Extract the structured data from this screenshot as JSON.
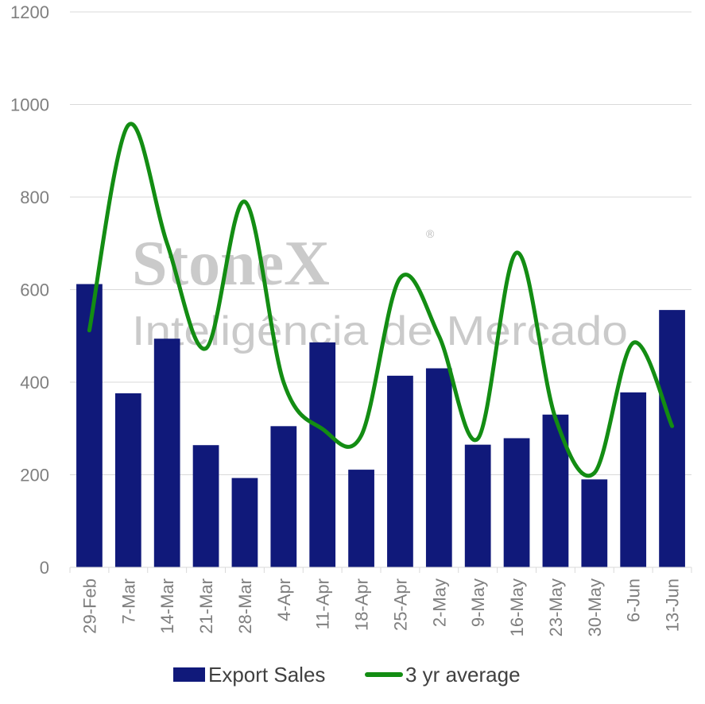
{
  "chart_data": {
    "type": "bar",
    "categories": [
      "29-Feb",
      "7-Mar",
      "14-Mar",
      "21-Mar",
      "28-Mar",
      "4-Apr",
      "11-Apr",
      "18-Apr",
      "25-Apr",
      "2-May",
      "9-May",
      "16-May",
      "23-May",
      "30-May",
      "6-Jun",
      "13-Jun"
    ],
    "series": [
      {
        "name": "Export Sales",
        "type": "bar",
        "color": "#10197a",
        "values": [
          612,
          376,
          494,
          264,
          193,
          305,
          486,
          211,
          414,
          430,
          265,
          279,
          330,
          190,
          378,
          556
        ]
      },
      {
        "name": "3 yr average",
        "type": "line",
        "smooth": true,
        "color": "#138d13",
        "values": [
          512,
          955,
          700,
          473,
          790,
          400,
          299,
          285,
          625,
          500,
          278,
          680,
          322,
          204,
          485,
          305
        ]
      }
    ],
    "ylim": [
      0,
      1200
    ],
    "yticks": [
      0,
      200,
      400,
      600,
      800,
      1000,
      1200
    ],
    "grid": true,
    "legend_position": "bottom",
    "title": "",
    "xlabel": "",
    "ylabel": ""
  },
  "watermark": {
    "brand": "StoneX",
    "registered": "®",
    "tagline": "Inteligência de Mercado"
  }
}
